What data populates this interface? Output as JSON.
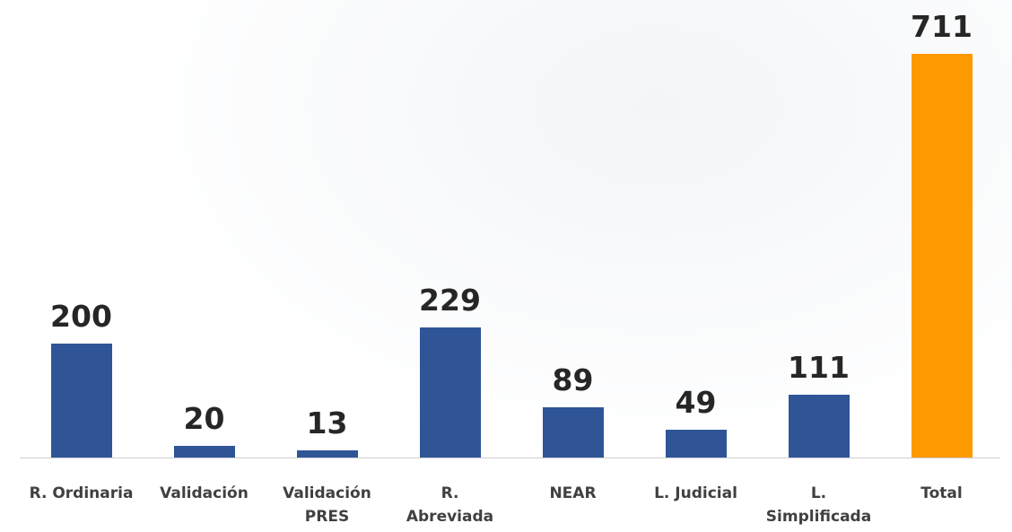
{
  "chart_data": {
    "type": "bar",
    "categories": [
      "R. Ordinaria",
      "Validación",
      "Validación\nPRES",
      "R.\nAbreviada",
      "NEAR",
      "L. Judicial",
      "L.\nSimplificada",
      "Total"
    ],
    "values": [
      200,
      20,
      13,
      229,
      89,
      49,
      111,
      711
    ],
    "colors": [
      "#2f5597",
      "#2f5597",
      "#2f5597",
      "#2f5597",
      "#2f5597",
      "#2f5597",
      "#2f5597",
      "#ff9900"
    ]
  }
}
